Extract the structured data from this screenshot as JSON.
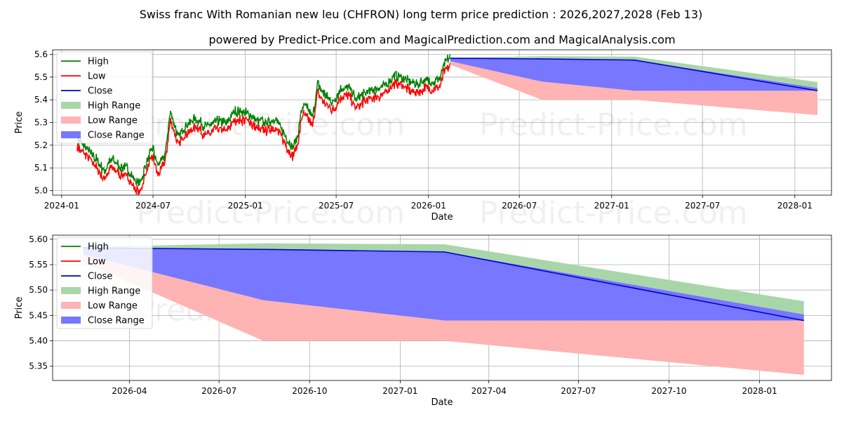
{
  "title": "Swiss franc With Romanian new leu (CHFRON) long term price prediction : 2026,2027,2028 (Feb 13)",
  "subtitle": "powered by Predict-Price.com and MagicalPrediction.com and MagicalAnalysis.com",
  "watermark": "Predict-Price.com",
  "colors": {
    "high": "#008000",
    "low": "#ff0000",
    "close": "#0000cc",
    "high_range": "#a9d6a9",
    "low_range": "#ffb3b3",
    "close_range": "#7777ff"
  },
  "chart_data": [
    {
      "type": "line",
      "name": "top-full-history",
      "xlabel": "Date",
      "ylabel": "Price",
      "xlim": [
        "2023-12-14",
        "2028-03-14"
      ],
      "ylim": [
        4.98,
        5.62
      ],
      "x_ticks": [
        "2024-01",
        "2024-07",
        "2025-01",
        "2025-07",
        "2026-01",
        "2026-07",
        "2027-01",
        "2027-07",
        "2028-01"
      ],
      "y_ticks": [
        5.0,
        5.1,
        5.2,
        5.3,
        5.4,
        5.5,
        5.6
      ],
      "y_tick_labels": [
        "5.0",
        "5.1",
        "5.2",
        "5.3",
        "5.4",
        "5.5",
        "5.6"
      ],
      "legend": [
        "High",
        "Low",
        "Close",
        "High Range",
        "Low Range",
        "Close Range"
      ],
      "legend_position": "top-left",
      "history_anchors": [
        [
          "2024-02-01",
          5.21
        ],
        [
          "2024-02-20",
          5.17
        ],
        [
          "2024-03-10",
          5.12
        ],
        [
          "2024-03-25",
          5.07
        ],
        [
          "2024-04-10",
          5.12
        ],
        [
          "2024-04-25",
          5.09
        ],
        [
          "2024-05-10",
          5.08
        ],
        [
          "2024-05-25",
          5.03
        ],
        [
          "2024-06-05",
          5.01
        ],
        [
          "2024-06-20",
          5.12
        ],
        [
          "2024-07-01",
          5.17
        ],
        [
          "2024-07-10",
          5.09
        ],
        [
          "2024-07-25",
          5.14
        ],
        [
          "2024-08-05",
          5.33
        ],
        [
          "2024-08-20",
          5.22
        ],
        [
          "2024-09-05",
          5.27
        ],
        [
          "2024-09-25",
          5.3
        ],
        [
          "2024-10-15",
          5.26
        ],
        [
          "2024-11-05",
          5.29
        ],
        [
          "2024-11-25",
          5.28
        ],
        [
          "2024-12-10",
          5.33
        ],
        [
          "2024-12-25",
          5.33
        ],
        [
          "2025-01-10",
          5.32
        ],
        [
          "2025-01-25",
          5.29
        ],
        [
          "2025-02-10",
          5.28
        ],
        [
          "2025-03-01",
          5.3
        ],
        [
          "2025-03-15",
          5.25
        ],
        [
          "2025-03-25",
          5.21
        ],
        [
          "2025-04-05",
          5.17
        ],
        [
          "2025-04-15",
          5.22
        ],
        [
          "2025-04-25",
          5.36
        ],
        [
          "2025-05-05",
          5.34
        ],
        [
          "2025-05-15",
          5.3
        ],
        [
          "2025-05-25",
          5.45
        ],
        [
          "2025-06-10",
          5.4
        ],
        [
          "2025-06-25",
          5.37
        ],
        [
          "2025-07-10",
          5.43
        ],
        [
          "2025-07-25",
          5.44
        ],
        [
          "2025-08-10",
          5.38
        ],
        [
          "2025-08-25",
          5.41
        ],
        [
          "2025-09-15",
          5.43
        ],
        [
          "2025-10-05",
          5.44
        ],
        [
          "2025-10-25",
          5.49
        ],
        [
          "2025-11-10",
          5.48
        ],
        [
          "2025-11-25",
          5.46
        ],
        [
          "2025-12-10",
          5.45
        ],
        [
          "2025-12-25",
          5.47
        ],
        [
          "2026-01-10",
          5.46
        ],
        [
          "2026-01-25",
          5.48
        ],
        [
          "2026-02-01",
          5.54
        ],
        [
          "2026-02-13",
          5.57
        ]
      ],
      "forecast": {
        "dates": [
          "2026-02-13",
          "2026-08-15",
          "2027-02-15",
          "2028-02-15"
        ],
        "high_range_top": [
          5.585,
          5.592,
          5.59,
          5.478
        ],
        "high_range_bottom": [
          5.575,
          5.578,
          5.575,
          5.452
        ],
        "close_range_top": [
          5.583,
          5.58,
          5.575,
          5.452
        ],
        "close_range_bottom": [
          5.57,
          5.48,
          5.44,
          5.44
        ],
        "low_range_top": [
          5.57,
          5.48,
          5.44,
          5.44
        ],
        "low_range_bottom": [
          5.555,
          5.4,
          5.4,
          5.333
        ],
        "close": [
          5.583,
          5.58,
          5.575,
          5.44
        ]
      }
    },
    {
      "type": "line",
      "name": "bottom-forecast-zoom",
      "xlabel": "Date",
      "ylabel": "Price",
      "xlim": [
        "2026-01-13",
        "2028-03-14"
      ],
      "ylim": [
        5.322,
        5.608
      ],
      "x_ticks": [
        "2026-04",
        "2026-07",
        "2026-10",
        "2027-01",
        "2027-04",
        "2027-07",
        "2027-10",
        "2028-01"
      ],
      "y_ticks": [
        5.35,
        5.4,
        5.45,
        5.5,
        5.55,
        5.6
      ],
      "y_tick_labels": [
        "5.35",
        "5.40",
        "5.45",
        "5.50",
        "5.55",
        "5.60"
      ],
      "legend": [
        "High",
        "Low",
        "Close",
        "High Range",
        "Low Range",
        "Close Range"
      ],
      "legend_position": "top-left",
      "forecast": {
        "dates": [
          "2026-02-13",
          "2026-08-15",
          "2027-02-15",
          "2028-02-15"
        ],
        "high_range_top": [
          5.585,
          5.592,
          5.59,
          5.478
        ],
        "high_range_bottom": [
          5.575,
          5.578,
          5.575,
          5.452
        ],
        "close_range_top": [
          5.583,
          5.58,
          5.575,
          5.452
        ],
        "close_range_bottom": [
          5.57,
          5.48,
          5.44,
          5.44
        ],
        "low_range_top": [
          5.57,
          5.48,
          5.44,
          5.44
        ],
        "low_range_bottom": [
          5.555,
          5.4,
          5.4,
          5.333
        ],
        "close": [
          5.583,
          5.58,
          5.575,
          5.44
        ]
      }
    }
  ]
}
